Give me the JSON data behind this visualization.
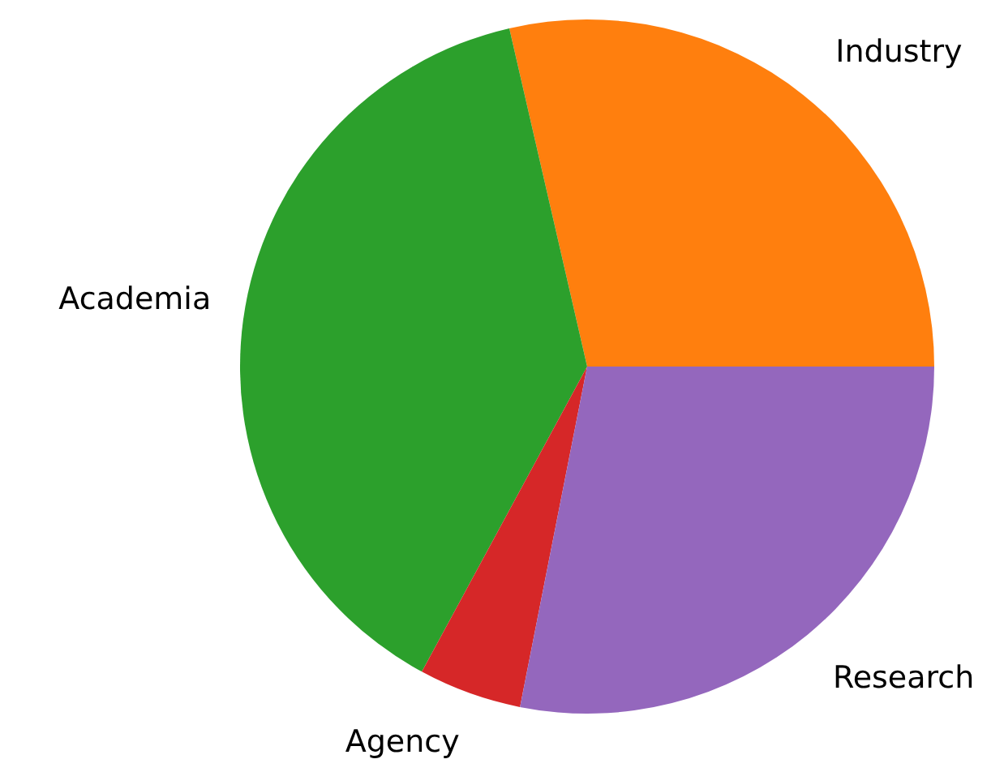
{
  "chart_data": {
    "type": "pie",
    "categories": [
      "Industry",
      "Academia",
      "Agency",
      "Research"
    ],
    "values": [
      28.6,
      38.5,
      4.8,
      28.1
    ],
    "colors": [
      "#ff7f0e",
      "#2ca02c",
      "#d62728",
      "#9467bd"
    ],
    "legend": false
  }
}
